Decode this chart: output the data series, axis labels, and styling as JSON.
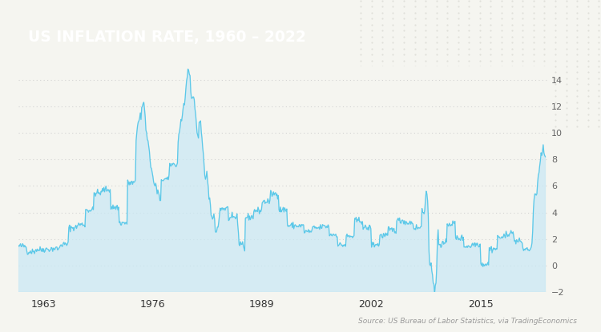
{
  "title": "US INFLATION RATE, 1960 - 2022",
  "title_dash": " – ",
  "title_bg_color": "#7a4f3a",
  "title_text_color": "#ffffff",
  "source_text": "Source: US Bureau of Labor Statistics, via TradingEconomics",
  "bg_color": "#f5f5f0",
  "plot_bg_color": "#f5f5f0",
  "line_color": "#5bc8e8",
  "fill_color": "#c8e8f5",
  "fill_alpha": 0.7,
  "ylim": [
    -2,
    15
  ],
  "yticks": [
    -2,
    0,
    2,
    4,
    6,
    8,
    10,
    12,
    14
  ],
  "xlabel_years": [
    1963,
    1976,
    1989,
    2002,
    2015
  ],
  "grid_color": "#cccccc",
  "grid_alpha": 0.8,
  "annual_avg": {
    "1960": 1.46,
    "1961": 1.07,
    "1962": 1.2,
    "1963": 1.24,
    "1964": 1.28,
    "1965": 1.59,
    "1966": 2.86,
    "1967": 3.09,
    "1968": 4.19,
    "1969": 5.46,
    "1970": 5.72,
    "1971": 4.38,
    "1972": 3.21,
    "1973": 6.22,
    "1974": 11.03,
    "1975": 9.14,
    "1976": 5.75,
    "1977": 6.5,
    "1978": 7.62,
    "1979": 11.35,
    "1980": 13.5,
    "1981": 10.32,
    "1982": 6.16,
    "1983": 3.21,
    "1984": 4.3,
    "1985": 3.56,
    "1986": 1.86,
    "1987": 3.65,
    "1988": 4.14,
    "1989": 4.82,
    "1990": 5.4,
    "1991": 4.21,
    "1992": 3.01,
    "1993": 2.99,
    "1994": 2.56,
    "1995": 2.83,
    "1996": 2.95,
    "1997": 2.34,
    "1998": 1.55,
    "1999": 2.19,
    "2000": 3.38,
    "2001": 2.83,
    "2002": 1.59,
    "2003": 2.27,
    "2004": 2.68,
    "2005": 3.39,
    "2006": 3.24,
    "2007": 2.85,
    "2008": 3.85,
    "2009": -0.36,
    "2010": 1.64,
    "2011": 3.16,
    "2012": 2.07,
    "2013": 1.47,
    "2014": 1.62,
    "2015": 0.12,
    "2016": 1.26,
    "2017": 2.13,
    "2018": 2.44,
    "2019": 1.81,
    "2020": 1.23,
    "2021": 4.7,
    "2022": 8.0
  }
}
